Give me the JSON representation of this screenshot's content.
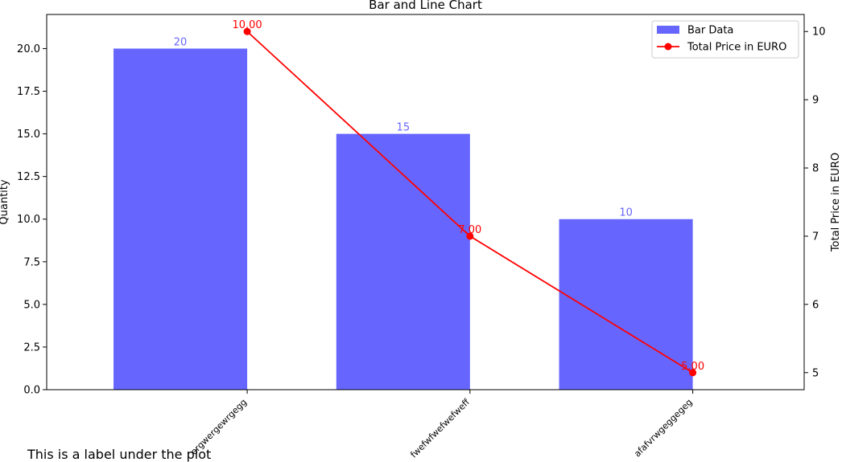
{
  "chart_data": {
    "type": "bar",
    "title": "Bar and Line Chart",
    "categories": [
      "ergwergewrgegg",
      "fwefwfwefwefweff",
      "afafvrwgeggegeg"
    ],
    "series": [
      {
        "name": "Bar Data",
        "type": "bar",
        "axis": "left",
        "values": [
          20,
          15,
          10
        ],
        "value_labels": [
          "20",
          "15",
          "10"
        ],
        "color": "#6666ff"
      },
      {
        "name": "Total Price in EURO",
        "type": "line",
        "axis": "right",
        "values": [
          10,
          7,
          5
        ],
        "value_labels": [
          "10.00",
          "7.00",
          "5.00"
        ],
        "color": "#ff0000"
      }
    ],
    "ylabel": "Quantity",
    "ylabel_right": "Total Price in EURO",
    "ylim": [
      0,
      22
    ],
    "ylim_right": [
      4.75,
      10.25
    ],
    "yticks": [
      "0.0",
      "2.5",
      "5.0",
      "7.5",
      "10.0",
      "12.5",
      "15.0",
      "17.5",
      "20.0"
    ],
    "yticks_right": [
      "5",
      "6",
      "7",
      "8",
      "9",
      "10"
    ],
    "legend": "top-right",
    "grid": false
  },
  "footnote": "This is a label under the plot"
}
